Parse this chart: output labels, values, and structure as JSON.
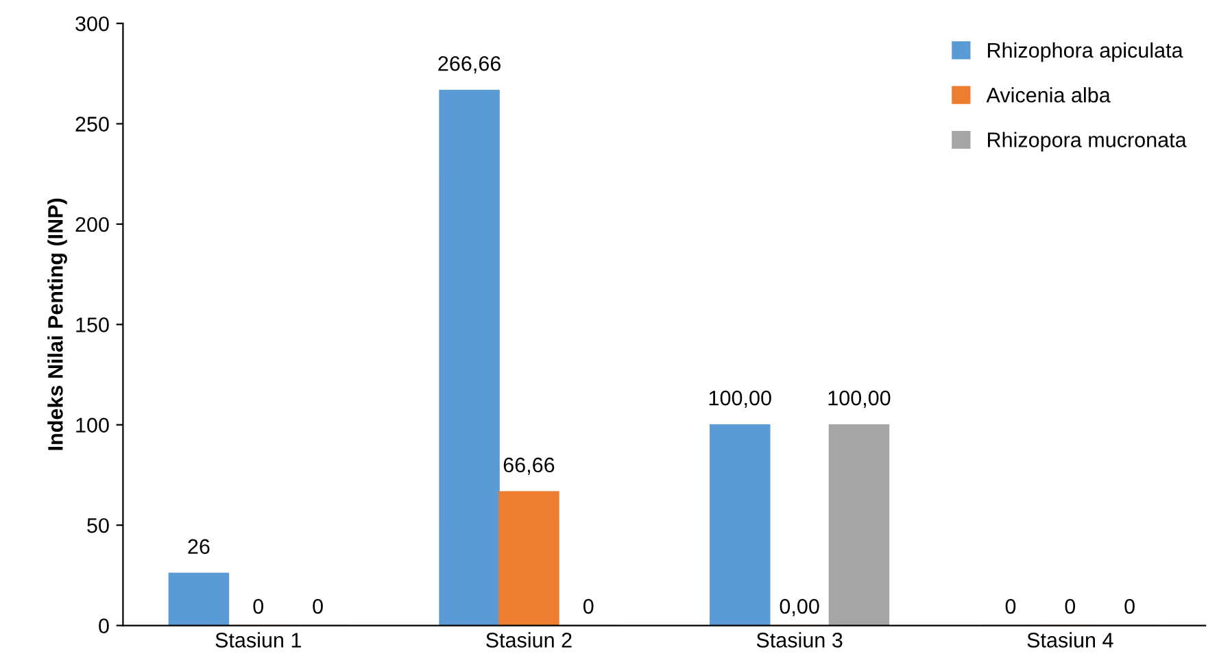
{
  "chart_data": {
    "type": "bar",
    "ylabel": "Indeks Nilai Penting (INP)",
    "categories": [
      "Stasiun 1",
      "Stasiun 2",
      "Stasiun 3",
      "Stasiun 4"
    ],
    "series": [
      {
        "name": "Rhizophora apiculata",
        "color": "#5b9bd5",
        "values": [
          26,
          266.66,
          100,
          0
        ],
        "value_labels": [
          "26",
          "266,66",
          "100,00",
          "0"
        ]
      },
      {
        "name": "Avicenia alba",
        "color": "#ed7d31",
        "values": [
          0,
          66.66,
          0,
          0
        ],
        "value_labels": [
          "0",
          "66,66",
          "0,00",
          "0"
        ]
      },
      {
        "name": "Rhizopora mucronata",
        "color": "#a5a5a5",
        "values": [
          0,
          0,
          100,
          0
        ],
        "value_labels": [
          "0",
          "0",
          "100,00",
          "0"
        ]
      }
    ],
    "ylim": [
      0,
      300
    ],
    "yticks": [
      0,
      50,
      100,
      150,
      200,
      250,
      300
    ],
    "grid": false,
    "legend": "top right"
  }
}
